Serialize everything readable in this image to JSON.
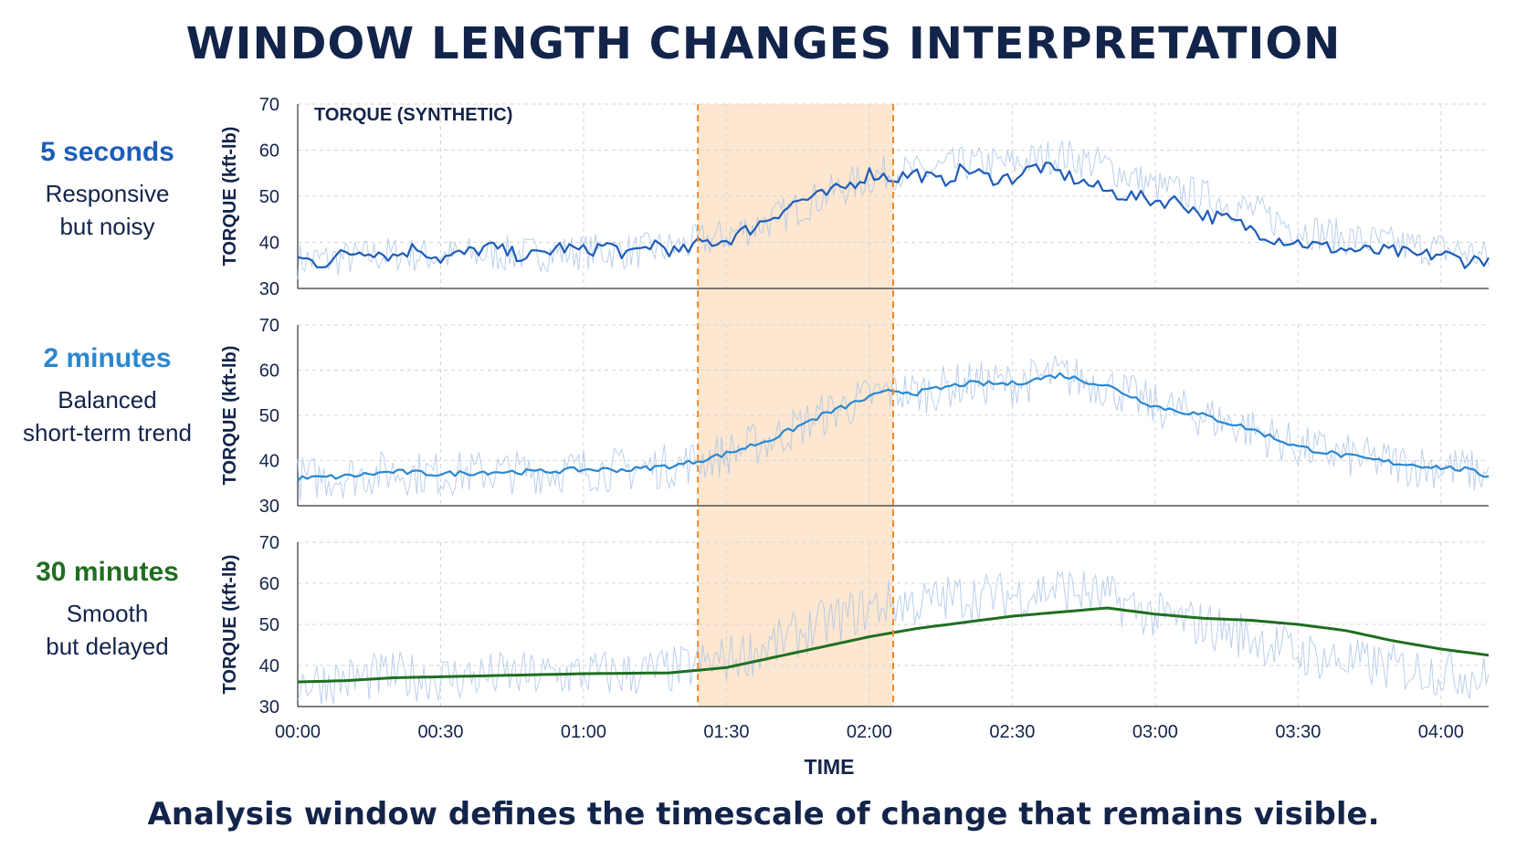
{
  "title": "WINDOW LENGTH CHANGES INTERPRETATION",
  "caption": "Analysis window defines the timescale of change that remains visible.",
  "colors": {
    "text": "#13244a",
    "raw": "#a9c4e6",
    "five_sec": "#1e5cb8",
    "two_min": "#2a87d0",
    "thirty_min": "#1f6e20",
    "highlight_fill": "#fde7d0",
    "highlight_edge": "#f08a2a",
    "grid": "#d6d6d6"
  },
  "panels": [
    {
      "window": "5 seconds",
      "desc_line1": "Responsive",
      "desc_line2": "but noisy",
      "color": "#1e5cb8"
    },
    {
      "window": "2 minutes",
      "desc_line1": "Balanced",
      "desc_line2": "short-term trend",
      "color": "#2a87d0"
    },
    {
      "window": "30 minutes",
      "desc_line1": "Smooth",
      "desc_line2": "but delayed",
      "color": "#1f6e20"
    }
  ],
  "chart_data": {
    "type": "line",
    "series_label": "TORQUE (SYNTHETIC)",
    "ylabel": "TORQUE (kft-lb)",
    "xlabel": "TIME",
    "ylim": [
      30,
      70
    ],
    "yticks": [
      30,
      40,
      50,
      60,
      70
    ],
    "xlim_minutes": [
      0,
      250
    ],
    "xticks": [
      "00:00",
      "00:30",
      "01:00",
      "01:30",
      "02:00",
      "02:30",
      "03:00",
      "03:30",
      "04:00"
    ],
    "highlight_window": {
      "start": "01:24",
      "end": "02:05"
    },
    "grid": true,
    "trend_5s": [
      [
        0,
        36.5
      ],
      [
        5,
        35.5
      ],
      [
        10,
        37.5
      ],
      [
        15,
        38.5
      ],
      [
        20,
        37
      ],
      [
        25,
        39
      ],
      [
        30,
        36.5
      ],
      [
        35,
        37.5
      ],
      [
        40,
        39
      ],
      [
        45,
        37.5
      ],
      [
        50,
        37
      ],
      [
        55,
        39
      ],
      [
        60,
        38
      ],
      [
        65,
        39.5
      ],
      [
        70,
        37
      ],
      [
        75,
        40
      ],
      [
        80,
        37.5
      ],
      [
        85,
        40
      ],
      [
        90,
        40.5
      ],
      [
        95,
        43
      ],
      [
        100,
        46
      ],
      [
        105,
        49
      ],
      [
        110,
        50
      ],
      [
        115,
        52
      ],
      [
        120,
        55
      ],
      [
        125,
        54
      ],
      [
        130,
        55
      ],
      [
        135,
        53
      ],
      [
        140,
        56
      ],
      [
        145,
        54
      ],
      [
        150,
        54
      ],
      [
        155,
        56.5
      ],
      [
        160,
        55
      ],
      [
        165,
        53
      ],
      [
        170,
        51
      ],
      [
        175,
        50
      ],
      [
        180,
        49
      ],
      [
        185,
        49
      ],
      [
        190,
        46
      ],
      [
        195,
        45
      ],
      [
        200,
        43
      ],
      [
        205,
        41
      ],
      [
        210,
        40
      ],
      [
        215,
        39
      ],
      [
        220,
        38.5
      ],
      [
        225,
        38
      ],
      [
        230,
        38
      ],
      [
        235,
        37
      ],
      [
        240,
        37.5
      ],
      [
        245,
        36
      ],
      [
        250,
        36.5
      ]
    ],
    "trend_2min": [
      [
        0,
        36
      ],
      [
        10,
        36.5
      ],
      [
        20,
        37.5
      ],
      [
        30,
        37
      ],
      [
        40,
        37.5
      ],
      [
        50,
        37.5
      ],
      [
        60,
        38
      ],
      [
        70,
        38
      ],
      [
        80,
        39
      ],
      [
        90,
        41.5
      ],
      [
        100,
        45
      ],
      [
        110,
        50
      ],
      [
        120,
        54
      ],
      [
        125,
        55.5
      ],
      [
        130,
        55
      ],
      [
        140,
        57
      ],
      [
        150,
        57
      ],
      [
        160,
        59
      ],
      [
        170,
        56.5
      ],
      [
        180,
        52
      ],
      [
        190,
        50
      ],
      [
        200,
        47
      ],
      [
        210,
        43
      ],
      [
        220,
        41
      ],
      [
        230,
        39.5
      ],
      [
        240,
        38.5
      ],
      [
        245,
        38
      ],
      [
        250,
        36.5
      ]
    ],
    "trend_30min": [
      [
        0,
        36
      ],
      [
        10,
        36.3
      ],
      [
        20,
        37
      ],
      [
        40,
        37.5
      ],
      [
        60,
        38
      ],
      [
        78,
        38.2
      ],
      [
        90,
        39.5
      ],
      [
        100,
        42
      ],
      [
        110,
        44.5
      ],
      [
        120,
        47
      ],
      [
        130,
        49
      ],
      [
        140,
        50.5
      ],
      [
        150,
        52
      ],
      [
        160,
        53
      ],
      [
        170,
        54
      ],
      [
        180,
        52.5
      ],
      [
        190,
        51.5
      ],
      [
        200,
        51
      ],
      [
        210,
        50
      ],
      [
        220,
        48.5
      ],
      [
        230,
        46
      ],
      [
        240,
        44
      ],
      [
        250,
        42.5
      ]
    ]
  }
}
